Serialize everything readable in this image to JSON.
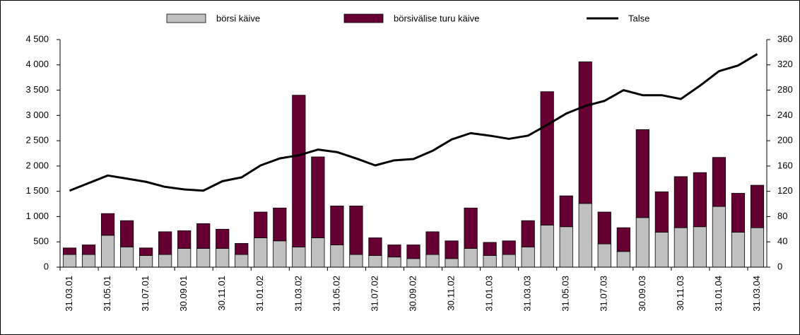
{
  "chart_data": {
    "type": "bar",
    "categories": [
      "31.03.01",
      null,
      "31.05.01",
      null,
      "31.07.01",
      null,
      "30.09.01",
      null,
      "30.11.01",
      null,
      "31.01.02",
      null,
      "31.03.02",
      null,
      "31.05.02",
      null,
      "31.07.02",
      null,
      "30.09.02",
      null,
      "30.11.02",
      null,
      "31.01.03",
      null,
      "31.03.03",
      null,
      "31.05.03",
      null,
      "31.07.03",
      null,
      "30.09.03",
      null,
      "30.11.03",
      null,
      "31.01.04",
      null,
      "31.03.04"
    ],
    "series": [
      {
        "name": "börsi käive",
        "color": "#c0c0c0",
        "values": [
          250,
          250,
          630,
          400,
          230,
          250,
          370,
          370,
          370,
          250,
          580,
          520,
          400,
          580,
          440,
          250,
          230,
          200,
          170,
          250,
          170,
          370,
          230,
          250,
          400,
          830,
          800,
          1260,
          460,
          310,
          980,
          690,
          780,
          800,
          1200,
          690,
          780
        ]
      },
      {
        "name": "börsivälise turu käive",
        "color": "#660033",
        "values": [
          130,
          190,
          430,
          520,
          150,
          450,
          350,
          490,
          380,
          220,
          510,
          650,
          3000,
          1600,
          770,
          960,
          350,
          240,
          270,
          450,
          350,
          800,
          260,
          270,
          520,
          2640,
          610,
          2800,
          630,
          470,
          1740,
          800,
          1010,
          1070,
          970,
          770,
          840
        ]
      },
      {
        "name": "Talse",
        "color": "#000000",
        "axis": "y2",
        "type": "line",
        "values": [
          121,
          133,
          145,
          140,
          135,
          127,
          123,
          121,
          136,
          142,
          161,
          172,
          177,
          186,
          182,
          172,
          161,
          169,
          171,
          184,
          202,
          212,
          208,
          203,
          208,
          225,
          243,
          255,
          263,
          280,
          272,
          272,
          266,
          287,
          310,
          319,
          337
        ]
      }
    ],
    "ylim": [
      0,
      4500
    ],
    "yticks": [
      0,
      500,
      {
        "value": 1000,
        "label": "1 000"
      },
      {
        "value": 1500,
        "label": "1 500"
      },
      {
        "value": 2000,
        "label": "2 000"
      },
      {
        "value": 2500,
        "label": "2 500"
      },
      {
        "value": 3000,
        "label": "3 000"
      },
      {
        "value": 3500,
        "label": "3 500"
      },
      {
        "value": 4000,
        "label": "4 000"
      },
      {
        "value": 4500,
        "label": "4 500"
      }
    ],
    "y2lim": [
      0,
      360
    ],
    "y2ticks": [
      0,
      40,
      80,
      120,
      160,
      200,
      240,
      280,
      320,
      360
    ],
    "legend": "top"
  }
}
